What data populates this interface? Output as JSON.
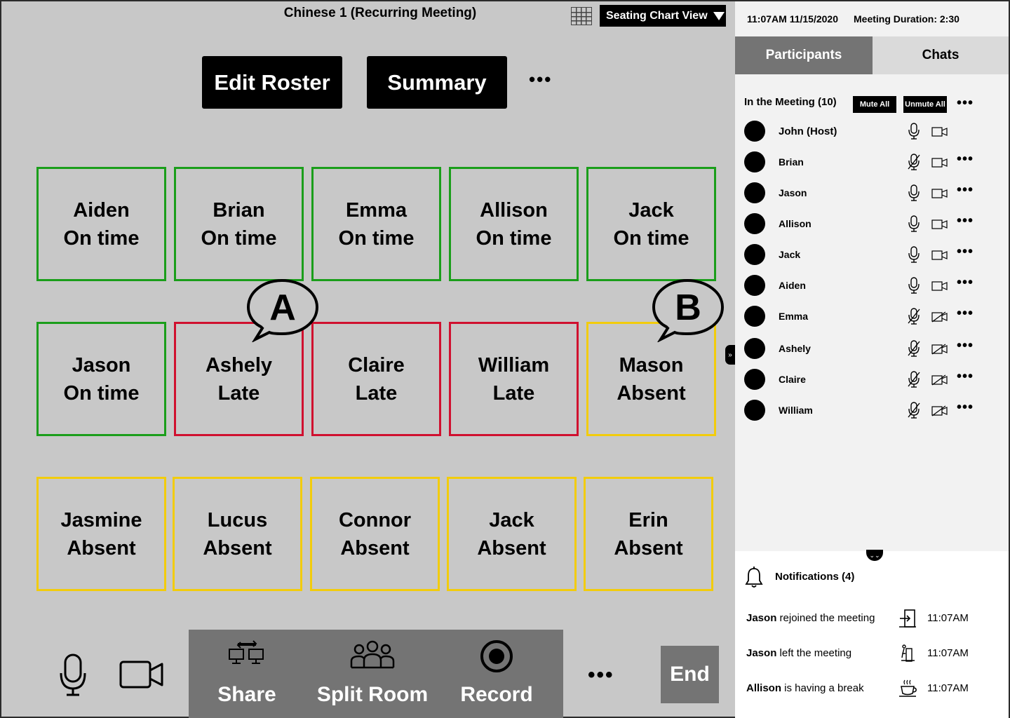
{
  "header": {
    "meeting_title": "Chinese 1 (Recurring Meeting)",
    "view_select": "Seating Chart View"
  },
  "actions": {
    "edit_roster": "Edit Roster",
    "summary": "Summary",
    "more": "•••"
  },
  "seats": [
    {
      "name": "Aiden",
      "status": "On time",
      "color": "#1a9e1a"
    },
    {
      "name": "Brian",
      "status": "On time",
      "color": "#1a9e1a"
    },
    {
      "name": "Emma",
      "status": "On time",
      "color": "#1a9e1a"
    },
    {
      "name": "Allison",
      "status": "On time",
      "color": "#1a9e1a"
    },
    {
      "name": "Jack",
      "status": "On time",
      "color": "#1a9e1a"
    },
    {
      "name": "Jason",
      "status": "On time",
      "color": "#1a9e1a"
    },
    {
      "name": "Ashely",
      "status": "Late",
      "color": "#d0102f"
    },
    {
      "name": "Claire",
      "status": "Late",
      "color": "#d0102f"
    },
    {
      "name": "William",
      "status": "Late",
      "color": "#d0102f"
    },
    {
      "name": "Mason",
      "status": "Absent",
      "color": "#f2cc0c"
    },
    {
      "name": "Jasmine",
      "status": "Absent",
      "color": "#f2cc0c"
    },
    {
      "name": "Lucus",
      "status": "Absent",
      "color": "#f2cc0c"
    },
    {
      "name": "Connor",
      "status": "Absent",
      "color": "#f2cc0c"
    },
    {
      "name": "Jack",
      "status": "Absent",
      "color": "#f2cc0c"
    },
    {
      "name": "Erin",
      "status": "Absent",
      "color": "#f2cc0c"
    }
  ],
  "annotations": {
    "a": "A",
    "b": "B"
  },
  "toolbar": {
    "share": "Share",
    "split_room": "Split Room",
    "record": "Record",
    "more": "•••",
    "end": "End",
    "mic_icon": "microphone-icon",
    "camera_icon": "video-camera-icon"
  },
  "sidebar": {
    "datetime": "11:07AM 11/15/2020",
    "duration": "Meeting Duration: 2:30",
    "tabs": {
      "participants": "Participants",
      "chats": "Chats"
    },
    "in_meeting": "In the Meeting (10)",
    "mute_all": "Mute All",
    "unmute_all": "Unmute All",
    "more": "•••",
    "participants": [
      {
        "name": "John (Host)",
        "mic_muted": false,
        "cam_off": false,
        "has_menu": false
      },
      {
        "name": "Brian",
        "mic_muted": true,
        "cam_off": false,
        "has_menu": true
      },
      {
        "name": "Jason",
        "mic_muted": false,
        "cam_off": false,
        "has_menu": true
      },
      {
        "name": "Allison",
        "mic_muted": false,
        "cam_off": false,
        "has_menu": true
      },
      {
        "name": "Jack",
        "mic_muted": false,
        "cam_off": false,
        "has_menu": true
      },
      {
        "name": "Aiden",
        "mic_muted": false,
        "cam_off": false,
        "has_menu": true
      },
      {
        "name": "Emma",
        "mic_muted": true,
        "cam_off": true,
        "has_menu": true
      },
      {
        "name": "Ashely",
        "mic_muted": true,
        "cam_off": true,
        "has_menu": true
      },
      {
        "name": "Claire",
        "mic_muted": true,
        "cam_off": true,
        "has_menu": true
      },
      {
        "name": "William",
        "mic_muted": true,
        "cam_off": true,
        "has_menu": true
      }
    ],
    "notifications_title": "Notifications (4)",
    "notifications": [
      {
        "who": "Jason",
        "text": " rejoined the meeting",
        "time": "11:07AM",
        "icon": "door-enter-icon"
      },
      {
        "who": "Jason",
        "text": " left the meeting",
        "time": "11:07AM",
        "icon": "person-exit-icon"
      },
      {
        "who": "Allison",
        "text": " is having a break",
        "time": "11:07AM",
        "icon": "coffee-cup-icon"
      }
    ]
  }
}
